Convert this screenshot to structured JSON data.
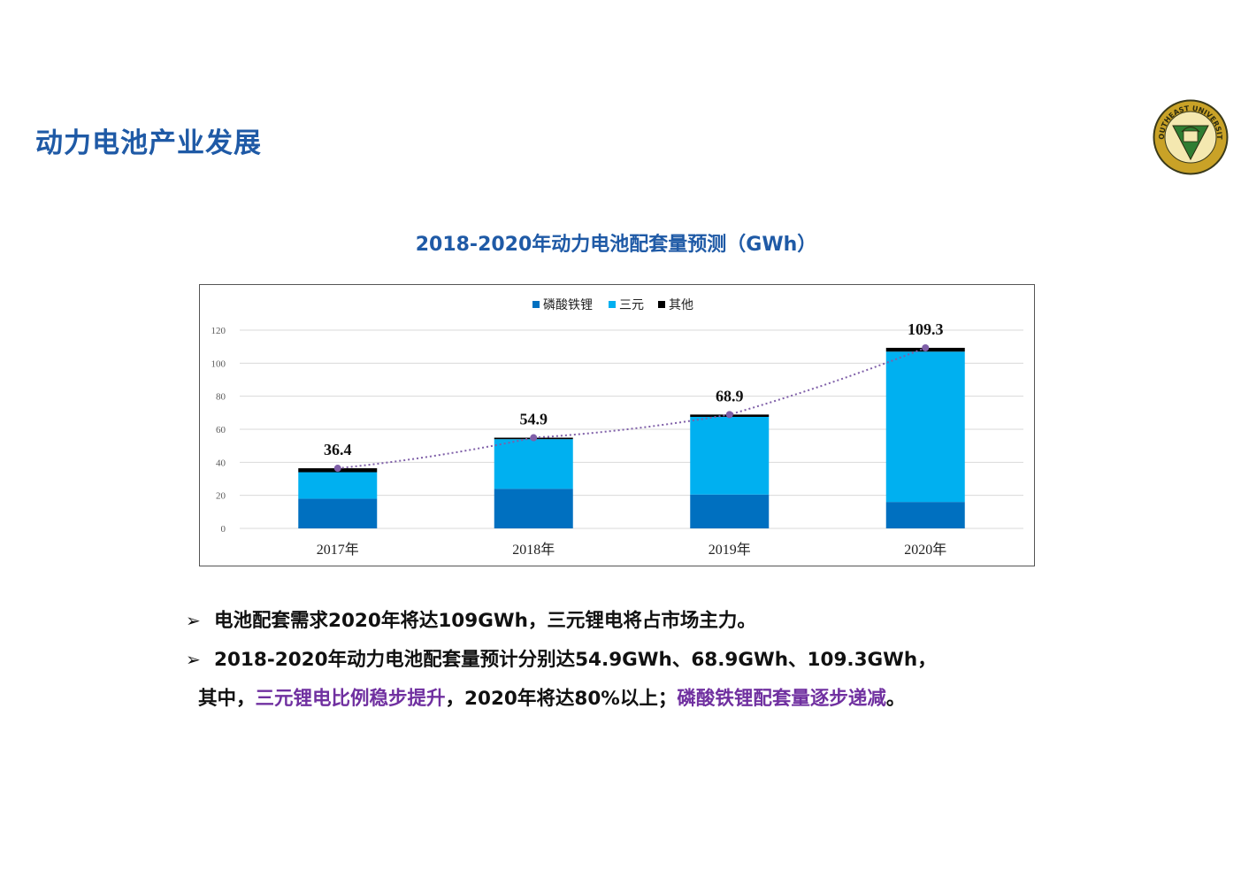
{
  "page": {
    "title": "动力电池产业发展",
    "logo_text": "SOUTHEAST UNIVERSITY"
  },
  "colors": {
    "lfp": "#0070c0",
    "ternary": "#00b0f0",
    "other": "#000000",
    "trend": "#7f5fa8",
    "title_blue": "#1f5aa6",
    "highlight": "#7030a0"
  },
  "chart_data": {
    "type": "bar",
    "stacked": true,
    "title": "2018-2020年动力电池配套量预测（GWh）",
    "categories": [
      "2017年",
      "2018年",
      "2019年",
      "2020年"
    ],
    "series": [
      {
        "name": "磷酸铁锂",
        "values": [
          18,
          24,
          20.5,
          16
        ]
      },
      {
        "name": "三元",
        "values": [
          16,
          30,
          47,
          91
        ]
      },
      {
        "name": "其他",
        "values": [
          2.4,
          0.9,
          1.4,
          2.3
        ]
      }
    ],
    "totals": [
      36.4,
      54.9,
      68.9,
      109.3
    ],
    "total_labels": [
      "36.4",
      "54.9",
      "68.9",
      "109.3"
    ],
    "trendline": "dotted",
    "ylim": [
      0,
      120
    ],
    "yticks": [
      0,
      20,
      40,
      60,
      80,
      100,
      120
    ],
    "ytick_labels": [
      "0",
      "20",
      "40",
      "60",
      "80",
      "100",
      "120"
    ],
    "legend_position": "top-center",
    "grid": true,
    "xlabel": "",
    "ylabel": ""
  },
  "bullets": [
    {
      "marker": "➢",
      "parts": [
        {
          "text": "电池配套需求2020年将达109GWh，三元锂电将占市场主力。",
          "hl": false
        }
      ]
    },
    {
      "marker": "➢",
      "parts": [
        {
          "text": "2018-2020年动力电池配套量预计分别达54.9GWh、68.9GWh、109.3GWh，",
          "hl": false
        }
      ]
    },
    {
      "marker": "",
      "parts": [
        {
          "text": "其中，",
          "hl": false
        },
        {
          "text": "三元锂电比例稳步提升",
          "hl": true
        },
        {
          "text": "，2020年将达80%以上；",
          "hl": false
        },
        {
          "text": "磷酸铁锂配套量逐步递减",
          "hl": true
        },
        {
          "text": "。",
          "hl": false
        }
      ]
    }
  ]
}
